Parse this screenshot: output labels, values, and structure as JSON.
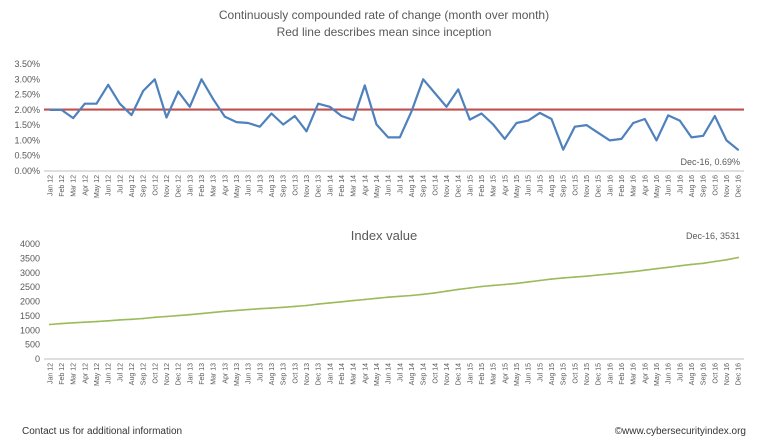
{
  "page": {
    "footer_left": "Contact us for additional information",
    "footer_right": "©www.cybersecurityindex.org"
  },
  "chart_data": [
    {
      "type": "line",
      "title": "Continuously compounded rate of change (month over month)",
      "subtitle": "Red line describes mean since inception",
      "categories": [
        "Jan 12",
        "Feb 12",
        "Mar 12",
        "Apr 12",
        "May 12",
        "Jun 12",
        "Jul 12",
        "Aug 12",
        "Sep 12",
        "Oct 12",
        "Nov 12",
        "Dec 12",
        "Jan 13",
        "Feb 13",
        "Mar 13",
        "Apr 13",
        "May 13",
        "Jun 13",
        "Jul 13",
        "Aug 13",
        "Sep 13",
        "Oct 13",
        "Nov 13",
        "Dec 13",
        "Jan 14",
        "Feb 14",
        "Mar 14",
        "Apr 14",
        "May 14",
        "Jun 14",
        "Jul 14",
        "Aug 14",
        "Sep 14",
        "Oct 14",
        "Nov 14",
        "Dec 14",
        "Jan 15",
        "Feb 15",
        "Mar 15",
        "Apr 15",
        "May 15",
        "Jun 15",
        "Jul 15",
        "Aug 15",
        "Sep 15",
        "Oct 15",
        "Nov 15",
        "Dec 15",
        "Jan 16",
        "Feb 16",
        "Mar 16",
        "Apr 16",
        "May 16",
        "Jun 16",
        "Jul 16",
        "Aug 16",
        "Sep 16",
        "Oct 16",
        "Nov 16",
        "Dec 16"
      ],
      "y_ticks": [
        "0.00%",
        "0.50%",
        "1.00%",
        "1.50%",
        "2.00%",
        "2.50%",
        "3.00%",
        "3.50%"
      ],
      "ylim": [
        0,
        3.5
      ],
      "unit": "%",
      "series": [
        {
          "color": "#4f81bd",
          "values": [
            2.0,
            2.0,
            1.73,
            2.2,
            2.2,
            2.82,
            2.2,
            1.83,
            2.62,
            3.0,
            1.75,
            2.6,
            2.1,
            3.0,
            2.35,
            1.78,
            1.6,
            1.57,
            1.45,
            1.88,
            1.52,
            1.8,
            1.3,
            2.2,
            2.1,
            1.8,
            1.67,
            2.8,
            1.52,
            1.1,
            1.1,
            1.95,
            3.0,
            2.55,
            2.1,
            2.67,
            1.68,
            1.88,
            1.52,
            1.05,
            1.57,
            1.65,
            1.9,
            1.7,
            0.7,
            1.45,
            1.5,
            1.25,
            1.0,
            1.05,
            1.57,
            1.7,
            1.0,
            1.82,
            1.65,
            1.1,
            1.15,
            1.8,
            1.0,
            0.69
          ]
        }
      ],
      "mean": {
        "value": 2.01,
        "color": "#c0504d"
      },
      "annotation": {
        "text": "Dec-16, 0.69%"
      },
      "grid": false,
      "legend": "none"
    },
    {
      "type": "line",
      "title": "Index value",
      "categories": [
        "Jan 12",
        "Feb 12",
        "Mar 12",
        "Apr 12",
        "May 12",
        "Jun 12",
        "Jul 12",
        "Aug 12",
        "Sep 12",
        "Oct 12",
        "Nov 12",
        "Dec 12",
        "Jan 13",
        "Feb 13",
        "Mar 13",
        "Apr 13",
        "May 13",
        "Jun 13",
        "Jul 13",
        "Aug 13",
        "Sep 13",
        "Oct 13",
        "Nov 13",
        "Dec 13",
        "Jan 14",
        "Feb 14",
        "Mar 14",
        "Apr 14",
        "May 14",
        "Jun 14",
        "Jul 14",
        "Aug 14",
        "Sep 14",
        "Oct 14",
        "Nov 14",
        "Dec 14",
        "Jan 15",
        "Feb 15",
        "Mar 15",
        "Apr 15",
        "May 15",
        "Jun 15",
        "Jul 15",
        "Aug 15",
        "Sep 15",
        "Oct 15",
        "Nov 15",
        "Dec 15",
        "Jan 16",
        "Feb 16",
        "Mar 16",
        "Apr 16",
        "May 16",
        "Jun 16",
        "Jul 16",
        "Aug 16",
        "Sep 16",
        "Oct 16",
        "Nov 16",
        "Dec 16"
      ],
      "y_ticks": [
        "0",
        "500",
        "1000",
        "1500",
        "2000",
        "2500",
        "3000",
        "3500",
        "4000"
      ],
      "ylim": [
        0,
        4000
      ],
      "series": [
        {
          "color": "#9bbb59",
          "values": [
            1200,
            1230,
            1260,
            1280,
            1300,
            1330,
            1360,
            1380,
            1410,
            1450,
            1480,
            1510,
            1540,
            1580,
            1620,
            1660,
            1690,
            1720,
            1750,
            1770,
            1800,
            1830,
            1860,
            1910,
            1950,
            1990,
            2030,
            2070,
            2110,
            2150,
            2180,
            2210,
            2250,
            2300,
            2360,
            2420,
            2470,
            2520,
            2560,
            2590,
            2630,
            2680,
            2730,
            2780,
            2820,
            2850,
            2880,
            2920,
            2960,
            3000,
            3040,
            3090,
            3140,
            3190,
            3240,
            3290,
            3330,
            3390,
            3450,
            3531
          ]
        }
      ],
      "annotation": {
        "text": "Dec-16, 3531"
      },
      "grid": false,
      "legend": "none"
    }
  ]
}
